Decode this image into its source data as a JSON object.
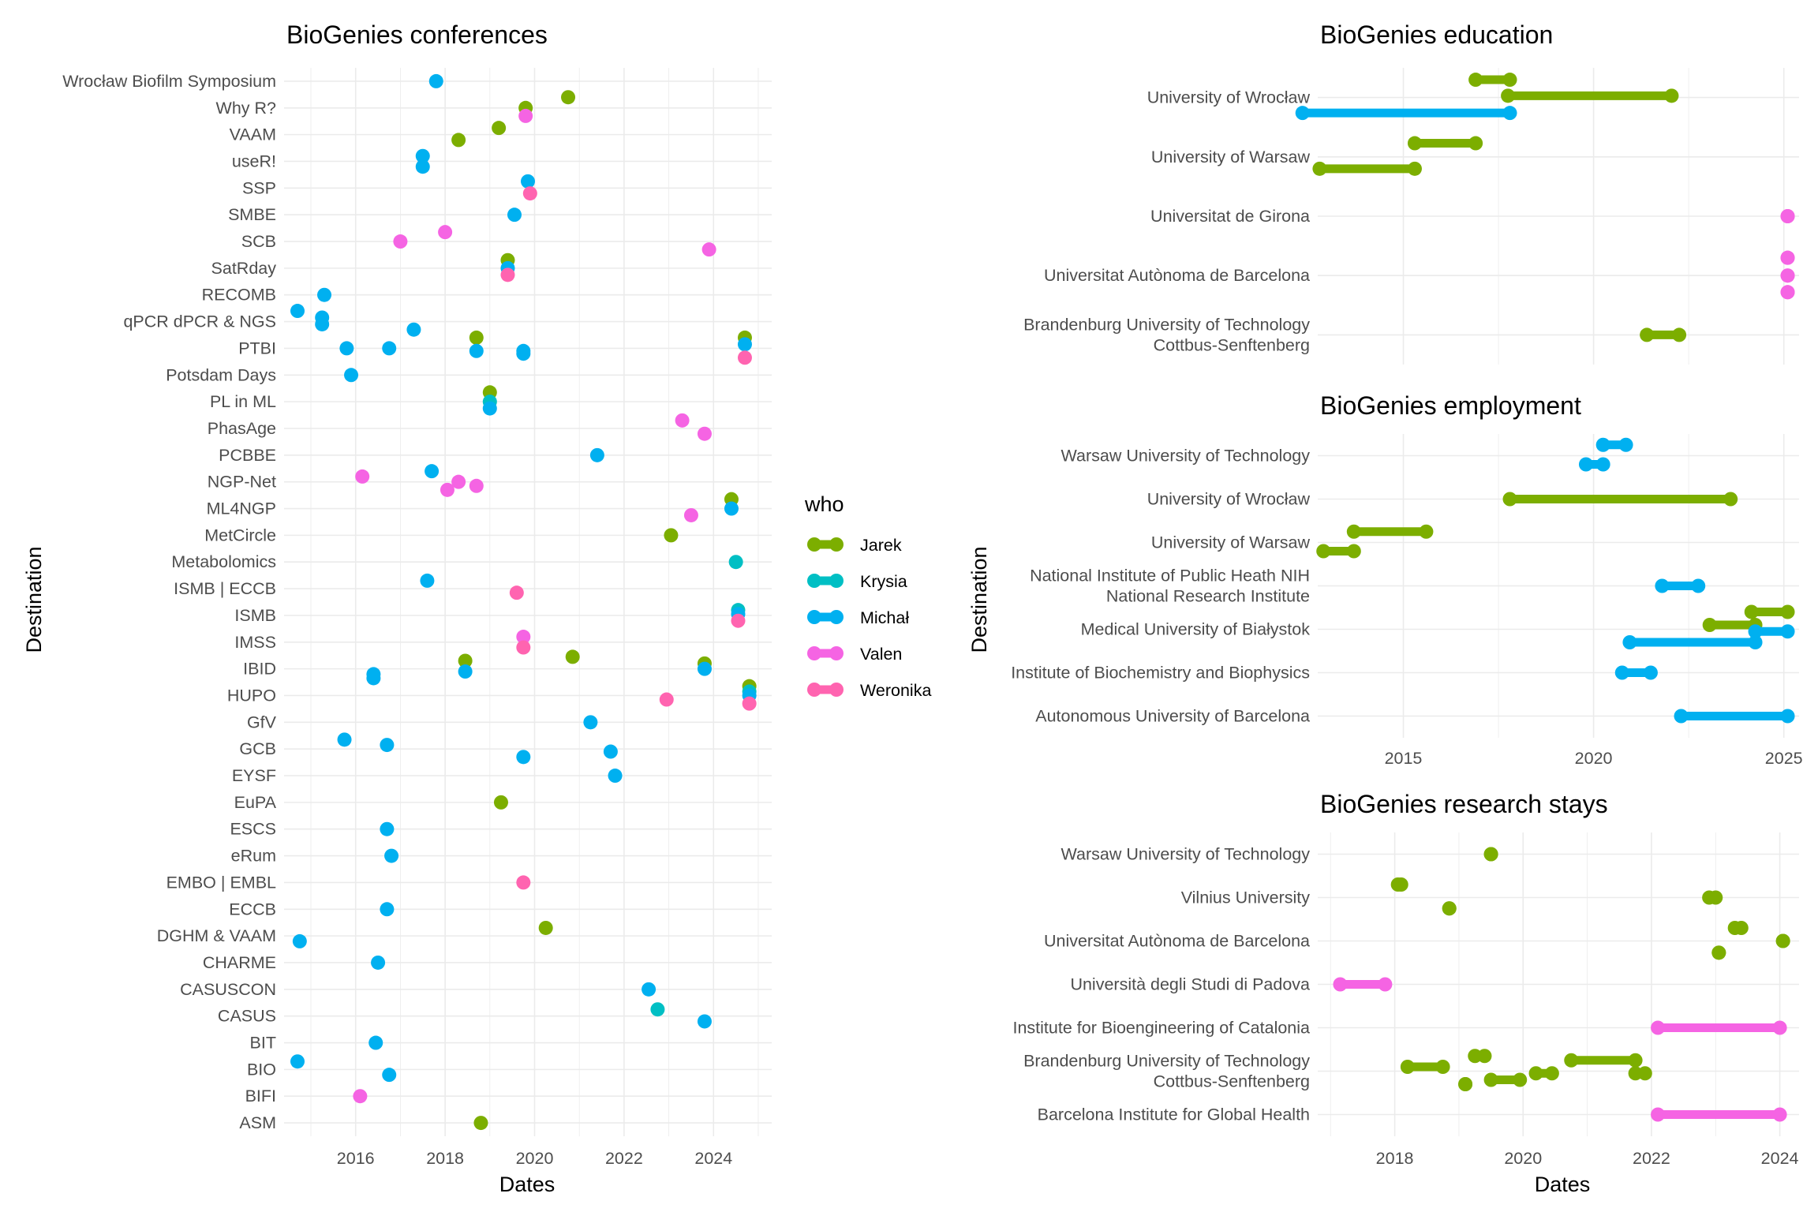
{
  "colors": {
    "Jarek": "#7CAE00",
    "Krysia": "#00BFC4",
    "Michał": "#00B0F0",
    "Valen": "#F564E3",
    "Weronika": "#FF64B0"
  },
  "legend": {
    "title": "who",
    "items": [
      "Jarek",
      "Krysia",
      "Michał",
      "Valen",
      "Weronika"
    ]
  },
  "chart_data": [
    {
      "id": "conferences",
      "type": "scatter",
      "title": "BioGenies conferences",
      "xlabel": "Dates",
      "ylabel": "Destination",
      "xlim": [
        2014.4,
        2025.3
      ],
      "xticks": [
        2016,
        2018,
        2020,
        2022,
        2024
      ],
      "grid": true,
      "categories": [
        "Wrocław Biofilm Symposium",
        "Why R?",
        "VAAM",
        "useR!",
        "SSP",
        "SMBE",
        "SCB",
        "SatRday",
        "RECOMB",
        "qPCR dPCR & NGS",
        "PTBI",
        "Potsdam Days",
        "PL in ML",
        "PhasAge",
        "PCBBE",
        "NGP-Net",
        "ML4NGP",
        "MetCircle",
        "Metabolomics",
        "ISMB | ECCB",
        "ISMB",
        "IMSS",
        "IBID",
        "HUPO",
        "GfV",
        "GCB",
        "EYSF",
        "EuPA",
        "ESCS",
        "eRum",
        "EMBO | EMBL",
        "ECCB",
        "DGHM & VAAM",
        "CHARME",
        "CASUSCON",
        "CASUS",
        "BIT",
        "BIO",
        "BIFI",
        "ASM"
      ],
      "points": [
        [
          "Wrocław Biofilm Symposium",
          2017.8,
          "Michał",
          0
        ],
        [
          "Why R?",
          2019.8,
          "Jarek",
          0
        ],
        [
          "Why R?",
          2020.75,
          "Jarek",
          -0.4
        ],
        [
          "Why R?",
          2019.8,
          "Valen",
          0.3
        ],
        [
          "VAAM",
          2019.2,
          "Jarek",
          -0.25
        ],
        [
          "VAAM",
          2018.3,
          "Jarek",
          0.2
        ],
        [
          "useR!",
          2017.5,
          "Michał",
          -0.2
        ],
        [
          "useR!",
          2017.5,
          "Michał",
          0.2
        ],
        [
          "SSP",
          2019.85,
          "Michał",
          -0.25
        ],
        [
          "SSP",
          2019.9,
          "Weronika",
          0.2
        ],
        [
          "SMBE",
          2019.55,
          "Michał",
          0
        ],
        [
          "SCB",
          2017.0,
          "Valen",
          0
        ],
        [
          "SCB",
          2018.0,
          "Valen",
          -0.35
        ],
        [
          "SCB",
          2023.9,
          "Valen",
          0.3
        ],
        [
          "SatRday",
          2019.4,
          "Jarek",
          -0.3
        ],
        [
          "SatRday",
          2019.4,
          "Michał",
          0
        ],
        [
          "SatRday",
          2019.4,
          "Weronika",
          0.25
        ],
        [
          "RECOMB",
          2015.3,
          "Michał",
          0
        ],
        [
          "qPCR dPCR & NGS",
          2014.7,
          "Michał",
          -0.4
        ],
        [
          "qPCR dPCR & NGS",
          2015.25,
          "Michał",
          -0.15
        ],
        [
          "qPCR dPCR & NGS",
          2015.25,
          "Michał",
          0.1
        ],
        [
          "qPCR dPCR & NGS",
          2017.3,
          "Michał",
          0.3
        ],
        [
          "PTBI",
          2018.7,
          "Jarek",
          -0.4
        ],
        [
          "PTBI",
          2024.7,
          "Jarek",
          -0.4
        ],
        [
          "PTBI",
          2024.7,
          "Michał",
          -0.15
        ],
        [
          "PTBI",
          2015.8,
          "Michał",
          0
        ],
        [
          "PTBI",
          2016.75,
          "Michał",
          0
        ],
        [
          "PTBI",
          2018.7,
          "Michał",
          0.1
        ],
        [
          "PTBI",
          2019.75,
          "Michał",
          0.1
        ],
        [
          "PTBI",
          2019.75,
          "Michał",
          0.2
        ],
        [
          "PTBI",
          2024.7,
          "Weronika",
          0.35
        ],
        [
          "Potsdam Days",
          2015.9,
          "Michał",
          0
        ],
        [
          "PL in ML",
          2019.0,
          "Jarek",
          -0.35
        ],
        [
          "PL in ML",
          2019.0,
          "Krysia",
          0
        ],
        [
          "PL in ML",
          2019.0,
          "Michał",
          0.25
        ],
        [
          "PhasAge",
          2023.3,
          "Valen",
          -0.3
        ],
        [
          "PhasAge",
          2023.8,
          "Valen",
          0.2
        ],
        [
          "PCBBE",
          2021.4,
          "Michał",
          0
        ],
        [
          "NGP-Net",
          2016.15,
          "Valen",
          -0.2
        ],
        [
          "NGP-Net",
          2017.7,
          "Michał",
          -0.4
        ],
        [
          "NGP-Net",
          2018.3,
          "Valen",
          0
        ],
        [
          "NGP-Net",
          2018.05,
          "Valen",
          0.3
        ],
        [
          "NGP-Net",
          2018.7,
          "Valen",
          0.15
        ],
        [
          "ML4NGP",
          2024.4,
          "Jarek",
          -0.35
        ],
        [
          "ML4NGP",
          2024.4,
          "Michał",
          0
        ],
        [
          "ML4NGP",
          2023.5,
          "Valen",
          0.25
        ],
        [
          "MetCircle",
          2023.05,
          "Jarek",
          0
        ],
        [
          "Metabolomics",
          2024.5,
          "Krysia",
          0
        ],
        [
          "ISMB | ECCB",
          2017.6,
          "Michał",
          -0.3
        ],
        [
          "ISMB | ECCB",
          2019.6,
          "Weronika",
          0.15
        ],
        [
          "ISMB",
          2024.55,
          "Krysia",
          -0.2
        ],
        [
          "ISMB",
          2024.55,
          "Michał",
          -0.05
        ],
        [
          "ISMB",
          2024.55,
          "Weronika",
          0.2
        ],
        [
          "IMSS",
          2019.75,
          "Valen",
          -0.2
        ],
        [
          "IMSS",
          2019.75,
          "Weronika",
          0.2
        ],
        [
          "IBID",
          2018.45,
          "Jarek",
          -0.3
        ],
        [
          "IBID",
          2020.85,
          "Jarek",
          -0.45
        ],
        [
          "IBID",
          2023.8,
          "Jarek",
          -0.2
        ],
        [
          "IBID",
          2023.8,
          "Michał",
          0
        ],
        [
          "IBID",
          2016.4,
          "Michał",
          0.2
        ],
        [
          "IBID",
          2016.4,
          "Michał",
          0.35
        ],
        [
          "IBID",
          2018.45,
          "Michał",
          0.1
        ],
        [
          "HUPO",
          2024.8,
          "Jarek",
          -0.35
        ],
        [
          "HUPO",
          2024.8,
          "Krysia",
          -0.15
        ],
        [
          "HUPO",
          2024.8,
          "Michał",
          0
        ],
        [
          "HUPO",
          2022.95,
          "Weronika",
          0.15
        ],
        [
          "HUPO",
          2024.8,
          "Weronika",
          0.3
        ],
        [
          "GfV",
          2021.25,
          "Michał",
          0
        ],
        [
          "GCB",
          2015.75,
          "Michał",
          -0.35
        ],
        [
          "GCB",
          2016.7,
          "Michał",
          -0.15
        ],
        [
          "GCB",
          2021.7,
          "Michał",
          0.1
        ],
        [
          "GCB",
          2019.75,
          "Michał",
          0.3
        ],
        [
          "EYSF",
          2021.8,
          "Michał",
          0
        ],
        [
          "EuPA",
          2019.25,
          "Jarek",
          0
        ],
        [
          "ESCS",
          2016.7,
          "Michał",
          0
        ],
        [
          "eRum",
          2016.8,
          "Michał",
          0
        ],
        [
          "EMBO | EMBL",
          2019.75,
          "Weronika",
          0
        ],
        [
          "ECCB",
          2016.7,
          "Michał",
          0
        ],
        [
          "DGHM & VAAM",
          2020.25,
          "Jarek",
          -0.3
        ],
        [
          "DGHM & VAAM",
          2014.75,
          "Michał",
          0.2
        ],
        [
          "CHARME",
          2016.5,
          "Michał",
          0
        ],
        [
          "CASUSCON",
          2022.55,
          "Michał",
          0
        ],
        [
          "CASUS",
          2022.75,
          "Krysia",
          -0.25
        ],
        [
          "CASUS",
          2023.8,
          "Michał",
          0.2
        ],
        [
          "BIT",
          2016.45,
          "Michał",
          0
        ],
        [
          "BIO",
          2014.7,
          "Michał",
          -0.3
        ],
        [
          "BIO",
          2016.75,
          "Michał",
          0.2
        ],
        [
          "BIFI",
          2016.1,
          "Valen",
          0
        ],
        [
          "ASM",
          2018.8,
          "Jarek",
          0
        ]
      ]
    },
    {
      "id": "education",
      "type": "line",
      "title": "BioGenies education",
      "xlabel": "",
      "ylabel": "",
      "xlim": [
        2012.75,
        2025.4
      ],
      "xticks": [
        2015,
        2020,
        2025
      ],
      "grid": true,
      "categories": [
        "University of Wrocław",
        "University of Warsaw",
        "Universitat de Girona",
        "Universitat Autònoma de Barcelona",
        "Brandenburg University of Technology\nCottbus-Senftenberg"
      ],
      "segments": [
        [
          "University of Wrocław",
          2016.9,
          2017.8,
          "Jarek",
          -0.3
        ],
        [
          "University of Wrocław",
          2017.75,
          2022.05,
          "Jarek",
          -0.03
        ],
        [
          "University of Wrocław",
          2012.35,
          2017.8,
          "Michał",
          0.26
        ],
        [
          "University of Warsaw",
          2012.8,
          2015.3,
          "Jarek",
          0.2
        ],
        [
          "University of Warsaw",
          2015.3,
          2016.9,
          "Jarek",
          -0.23
        ],
        [
          "Universitat de Girona",
          2025.1,
          2025.1,
          "Valen",
          0
        ],
        [
          "Universitat Autònoma de Barcelona",
          2025.1,
          2025.1,
          "Valen",
          -0.3
        ],
        [
          "Universitat Autònoma de Barcelona",
          2025.1,
          2025.1,
          "Valen",
          0
        ],
        [
          "Universitat Autònoma de Barcelona",
          2025.1,
          2025.1,
          "Valen",
          0.28
        ],
        [
          "Brandenburg University of Technology\nCottbus-Senftenberg",
          2021.4,
          2022.25,
          "Jarek",
          0
        ]
      ]
    },
    {
      "id": "employment",
      "type": "line",
      "title": "BioGenies employment",
      "xlabel": "",
      "ylabel": "Destination",
      "xlim": [
        2012.75,
        2025.4
      ],
      "xticks": [
        2015,
        2020,
        2025
      ],
      "grid": true,
      "categories": [
        "Warsaw University of Technology",
        "University of Wrocław",
        "University of Warsaw",
        "National Institute of Public Heath NIH\nNational Research Institute",
        "Medical University of Białystok",
        "Institute of Biochemistry and Biophysics",
        "Autonomous University of Barcelona"
      ],
      "segments": [
        [
          "Warsaw University of Technology",
          2020.25,
          2020.85,
          "Michał",
          -0.25
        ],
        [
          "Warsaw University of Technology",
          2019.8,
          2020.25,
          "Michał",
          0.2
        ],
        [
          "University of Wrocław",
          2017.8,
          2023.6,
          "Jarek",
          0
        ],
        [
          "University of Warsaw",
          2013.7,
          2015.6,
          "Jarek",
          -0.25
        ],
        [
          "University of Warsaw",
          2012.9,
          2013.7,
          "Jarek",
          0.2
        ],
        [
          "National Institute of Public Heath NIH\nNational Research Institute",
          2021.8,
          2022.75,
          "Michał",
          0
        ],
        [
          "Medical University of Białystok",
          2024.15,
          2025.1,
          "Jarek",
          -0.4
        ],
        [
          "Medical University of Białystok",
          2023.05,
          2024.25,
          "Jarek",
          -0.1
        ],
        [
          "Medical University of Białystok",
          2024.25,
          2025.1,
          "Michał",
          0.05
        ],
        [
          "Medical University of Białystok",
          2020.95,
          2024.25,
          "Michał",
          0.3
        ],
        [
          "Institute of Biochemistry and Biophysics",
          2020.75,
          2021.5,
          "Michał",
          0
        ],
        [
          "Autonomous University of Barcelona",
          2022.3,
          2025.1,
          "Michał",
          0
        ]
      ]
    },
    {
      "id": "stays",
      "type": "line",
      "title": "BioGenies research stays",
      "xlabel": "Dates",
      "ylabel": "",
      "xlim": [
        2016.8,
        2024.3
      ],
      "xticks": [
        2018,
        2020,
        2022,
        2024
      ],
      "grid": true,
      "categories": [
        "Warsaw University of Technology",
        "Vilnius University",
        "Universitat Autònoma de Barcelona",
        "Università degli Studi di Padova",
        "Institute for Bioengineering of Catalonia",
        "Brandenburg University of Technology\nCottbus-Senftenberg",
        "Barcelona Institute for Global Health"
      ],
      "segments": [
        [
          "Warsaw University of Technology",
          2019.5,
          2019.5,
          "Jarek",
          0
        ],
        [
          "Vilnius University",
          2018.05,
          2018.1,
          "Jarek",
          -0.3
        ],
        [
          "Vilnius University",
          2018.85,
          2018.85,
          "Jarek",
          0.25
        ],
        [
          "Vilnius University",
          2022.9,
          2023.0,
          "Jarek",
          0
        ],
        [
          "Universitat Autònoma de Barcelona",
          2023.3,
          2023.4,
          "Jarek",
          -0.3
        ],
        [
          "Universitat Autònoma de Barcelona",
          2024.05,
          2024.05,
          "Jarek",
          0
        ],
        [
          "Universitat Autònoma de Barcelona",
          2023.05,
          2023.05,
          "Jarek",
          0.27
        ],
        [
          "Università degli Studi di Padova",
          2017.15,
          2017.85,
          "Valen",
          0
        ],
        [
          "Institute for Bioengineering of Catalonia",
          2022.1,
          2024.0,
          "Valen",
          0
        ],
        [
          "Brandenburg University of Technology\nCottbus-Senftenberg",
          2019.25,
          2019.4,
          "Jarek",
          -0.35
        ],
        [
          "Brandenburg University of Technology\nCottbus-Senftenberg",
          2020.75,
          2021.75,
          "Jarek",
          -0.25
        ],
        [
          "Brandenburg University of Technology\nCottbus-Senftenberg",
          2018.2,
          2018.75,
          "Jarek",
          -0.1
        ],
        [
          "Brandenburg University of Technology\nCottbus-Senftenberg",
          2020.2,
          2020.45,
          "Jarek",
          0.05
        ],
        [
          "Brandenburg University of Technology\nCottbus-Senftenberg",
          2021.75,
          2021.9,
          "Jarek",
          0.05
        ],
        [
          "Brandenburg University of Technology\nCottbus-Senftenberg",
          2019.5,
          2019.95,
          "Jarek",
          0.2
        ],
        [
          "Brandenburg University of Technology\nCottbus-Senftenberg",
          2019.1,
          2019.1,
          "Jarek",
          0.3
        ],
        [
          "Barcelona Institute for Global Health",
          2022.1,
          2024.0,
          "Valen",
          0
        ]
      ]
    }
  ]
}
